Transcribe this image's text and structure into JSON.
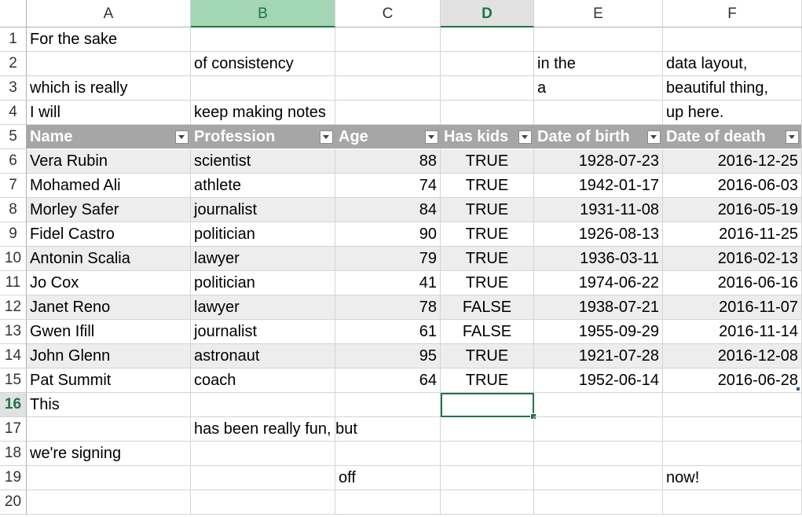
{
  "sheet": {
    "columns": [
      "A",
      "B",
      "C",
      "D",
      "E",
      "F"
    ],
    "selected_column": "B",
    "active_cell": "D16",
    "active_column": "D",
    "active_row": 16,
    "rows": [
      {
        "n": "1",
        "cells": [
          "For the sake",
          "",
          "",
          "",
          "",
          ""
        ]
      },
      {
        "n": "2",
        "cells": [
          "",
          "of consistency",
          "",
          "",
          "in the",
          "data layout,"
        ]
      },
      {
        "n": "3",
        "cells": [
          "which is really",
          "",
          "",
          "",
          "a",
          "beautiful thing,"
        ]
      },
      {
        "n": "4",
        "cells": [
          "I will",
          "keep making notes",
          "",
          "",
          "",
          "up here."
        ]
      },
      {
        "n": "5",
        "cells": [
          "Name",
          "Profession",
          "Age",
          "Has kids",
          "Date of birth",
          "Date of death"
        ]
      },
      {
        "n": "6",
        "cells": [
          "Vera Rubin",
          "scientist",
          "88",
          "TRUE",
          "1928-07-23",
          "2016-12-25"
        ]
      },
      {
        "n": "7",
        "cells": [
          "Mohamed Ali",
          "athlete",
          "74",
          "TRUE",
          "1942-01-17",
          "2016-06-03"
        ]
      },
      {
        "n": "8",
        "cells": [
          "Morley Safer",
          "journalist",
          "84",
          "TRUE",
          "1931-11-08",
          "2016-05-19"
        ]
      },
      {
        "n": "9",
        "cells": [
          "Fidel Castro",
          "politician",
          "90",
          "TRUE",
          "1926-08-13",
          "2016-11-25"
        ]
      },
      {
        "n": "10",
        "cells": [
          "Antonin Scalia",
          "lawyer",
          "79",
          "TRUE",
          "1936-03-11",
          "2016-02-13"
        ]
      },
      {
        "n": "11",
        "cells": [
          "Jo Cox",
          "politician",
          "41",
          "TRUE",
          "1974-06-22",
          "2016-06-16"
        ]
      },
      {
        "n": "12",
        "cells": [
          "Janet Reno",
          "lawyer",
          "78",
          "FALSE",
          "1938-07-21",
          "2016-11-07"
        ]
      },
      {
        "n": "13",
        "cells": [
          "Gwen Ifill",
          "journalist",
          "61",
          "FALSE",
          "1955-09-29",
          "2016-11-14"
        ]
      },
      {
        "n": "14",
        "cells": [
          "John Glenn",
          "astronaut",
          "95",
          "TRUE",
          "1921-07-28",
          "2016-12-08"
        ]
      },
      {
        "n": "15",
        "cells": [
          "Pat Summit",
          "coach",
          "64",
          "TRUE",
          "1952-06-14",
          "2016-06-28"
        ]
      },
      {
        "n": "16",
        "cells": [
          "This",
          "",
          "",
          "",
          "",
          ""
        ]
      },
      {
        "n": "17",
        "cells": [
          "",
          "has been really fun, but",
          "",
          "",
          "",
          ""
        ]
      },
      {
        "n": "18",
        "cells": [
          "we're signing",
          "",
          "",
          "",
          "",
          ""
        ]
      },
      {
        "n": "19",
        "cells": [
          "",
          "",
          "off",
          "",
          "",
          "now!"
        ]
      },
      {
        "n": "20",
        "cells": [
          "",
          "",
          "",
          "",
          "",
          ""
        ]
      }
    ],
    "table": {
      "header_row": 5,
      "first_data_row": 6,
      "last_data_row": 15
    },
    "colors": {
      "header_fill": "#a6a6a6",
      "band_fill": "#ededed",
      "selection_green": "#217346",
      "selected_col_header": "#a4d6b6"
    }
  }
}
